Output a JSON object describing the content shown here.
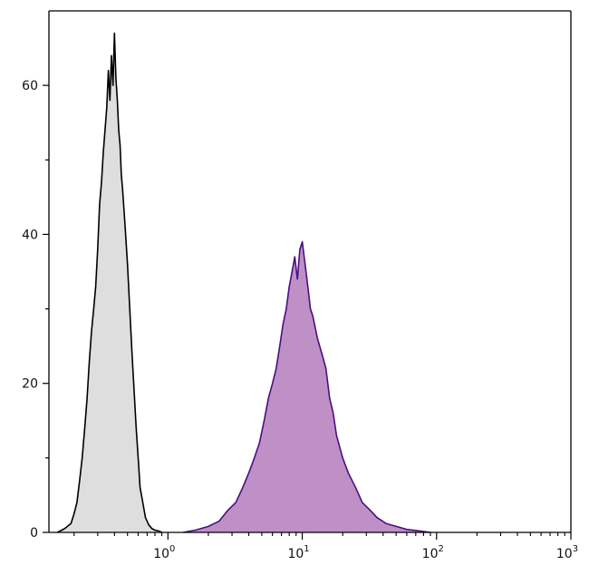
{
  "chart_data": {
    "type": "area",
    "title": "",
    "xlabel": "",
    "ylabel": "",
    "xscale": "log",
    "xlim": [
      0.13,
      1000
    ],
    "ylim": [
      0,
      70
    ],
    "grid": false,
    "legend": "none",
    "x_ticks": [
      {
        "base": "10",
        "exp": "0",
        "value": 1
      },
      {
        "base": "10",
        "exp": "1",
        "value": 10
      },
      {
        "base": "10",
        "exp": "2",
        "value": 100
      },
      {
        "base": "10",
        "exp": "3",
        "value": 1000
      }
    ],
    "y_ticks": [
      {
        "label": "0",
        "value": 0
      },
      {
        "label": "20",
        "value": 20
      },
      {
        "label": "40",
        "value": 40
      },
      {
        "label": "60",
        "value": 60
      }
    ],
    "series": [
      {
        "fill": "#dedede",
        "stroke": "#000000",
        "x": [
          0.15,
          0.17,
          0.19,
          0.2,
          0.21,
          0.22,
          0.23,
          0.24,
          0.25,
          0.26,
          0.27,
          0.28,
          0.29,
          0.3,
          0.31,
          0.32,
          0.33,
          0.34,
          0.35,
          0.36,
          0.37,
          0.38,
          0.39,
          0.4,
          0.41,
          0.42,
          0.43,
          0.44,
          0.45,
          0.46,
          0.48,
          0.5,
          0.52,
          0.54,
          0.56,
          0.58,
          0.6,
          0.62,
          0.65,
          0.68,
          0.72,
          0.76,
          0.8,
          0.85,
          0.9
        ],
        "values": [
          0,
          0.5,
          1.2,
          2.5,
          4,
          7,
          10,
          14,
          18,
          23,
          27,
          30,
          33,
          38,
          44,
          47,
          51,
          54,
          57,
          62,
          58,
          64,
          60,
          67,
          61,
          58,
          54,
          52,
          48,
          46,
          41,
          36,
          30,
          24,
          19,
          14,
          10,
          6,
          4,
          2,
          1,
          0.5,
          0.3,
          0.2,
          0
        ]
      },
      {
        "fill": "#be90c5",
        "stroke": "#4a0f82",
        "x": [
          1.3,
          1.6,
          2,
          2.4,
          2.8,
          3.2,
          3.6,
          4,
          4.4,
          4.8,
          5.2,
          5.6,
          6,
          6.4,
          6.8,
          7.2,
          7.6,
          8,
          8.4,
          8.8,
          9.2,
          9.6,
          10,
          10.5,
          11,
          11.5,
          12,
          13,
          14,
          15,
          16,
          17,
          18,
          20,
          22,
          25,
          28,
          32,
          36,
          42,
          50,
          60,
          75,
          90
        ],
        "values": [
          0,
          0.3,
          0.8,
          1.5,
          3,
          4,
          6,
          8,
          10,
          12,
          15,
          18,
          20,
          22,
          25,
          28,
          30,
          33,
          35,
          37,
          34,
          38,
          39,
          36,
          33,
          30,
          29,
          26,
          24,
          22,
          18,
          16,
          13,
          10,
          8,
          6,
          4,
          3,
          2,
          1.2,
          0.8,
          0.4,
          0.2,
          0
        ]
      }
    ]
  }
}
